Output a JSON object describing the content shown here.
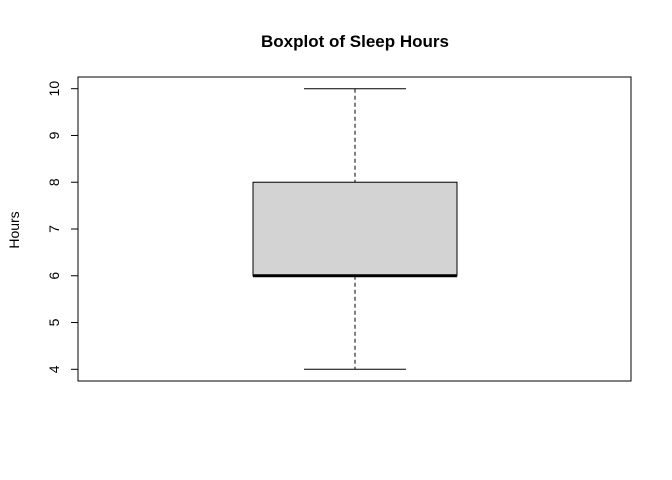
{
  "chart_data": {
    "type": "boxplot",
    "title": "Boxplot of Sleep Hours",
    "xlabel": "",
    "ylabel": "Hours",
    "ylim": [
      3.75,
      10.25
    ],
    "yticks": [
      4,
      5,
      6,
      7,
      8,
      9,
      10
    ],
    "grid": false,
    "box": {
      "min": 4,
      "q1": 6,
      "median": 6,
      "q3": 8,
      "max": 10
    },
    "colors": {
      "box_fill": "#d3d3d3",
      "stroke": "#000000",
      "background": "#ffffff"
    }
  }
}
